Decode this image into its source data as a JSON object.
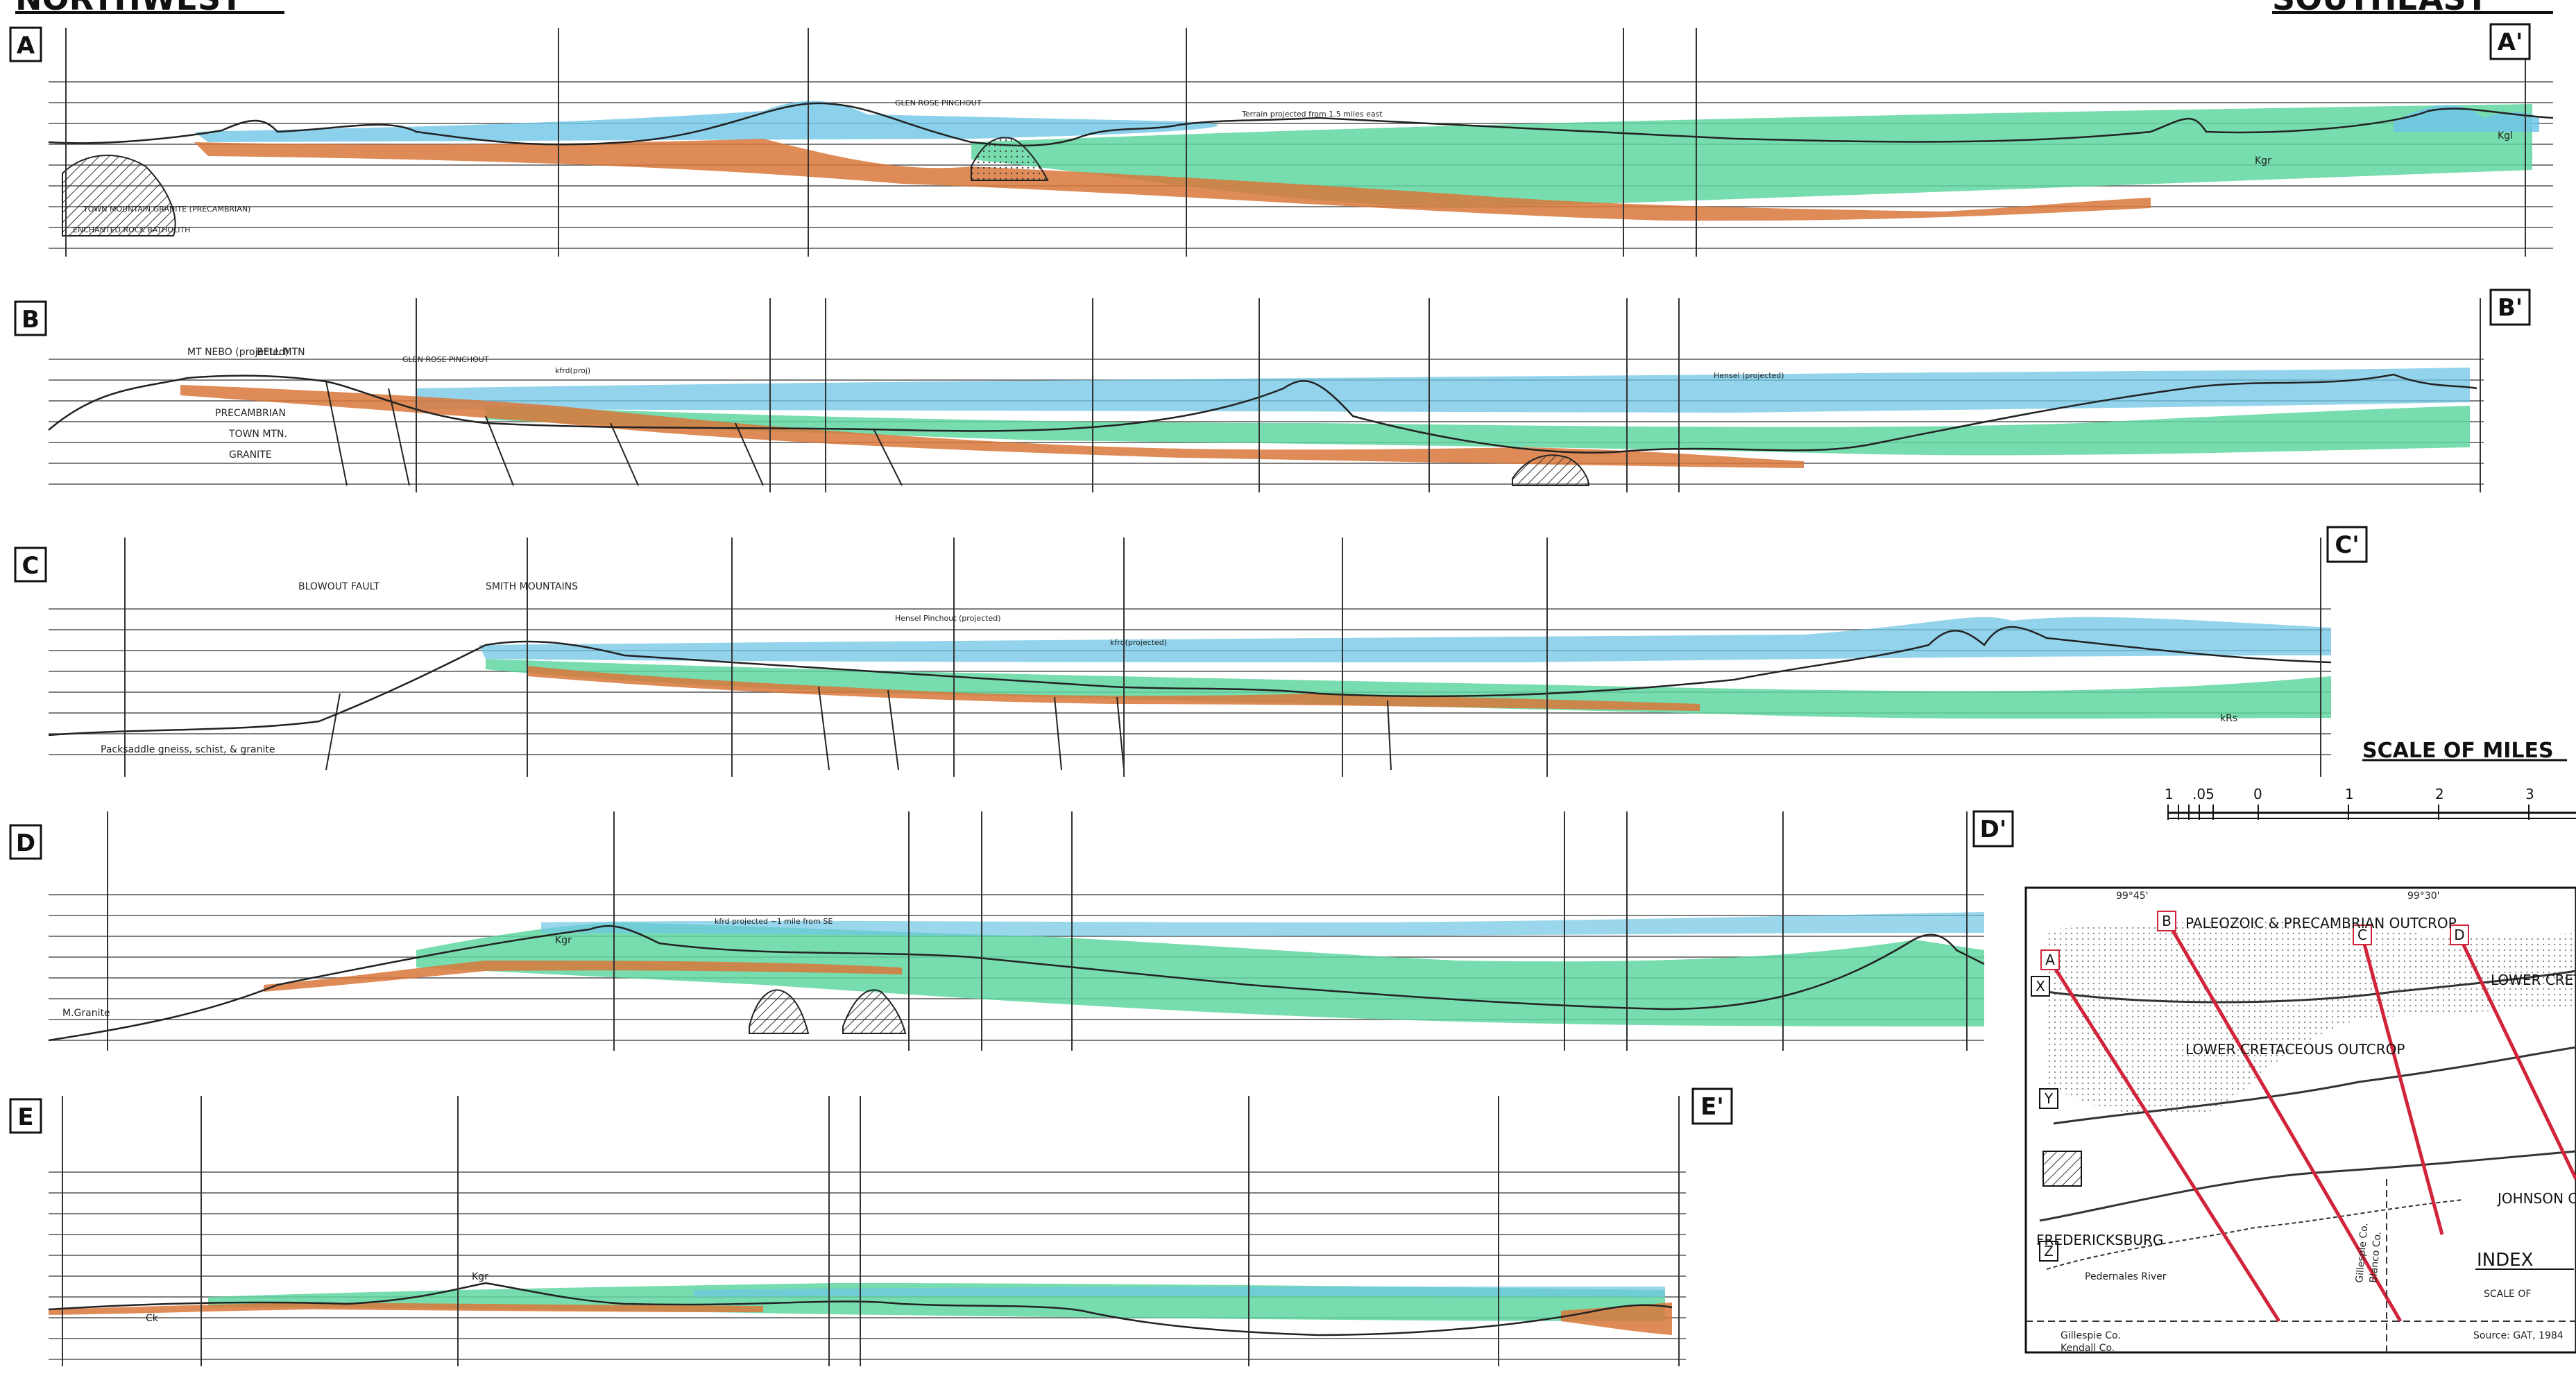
{
  "header": {
    "left": "NORTHWEST",
    "right": "SOUTHEAST"
  },
  "sections": [
    {
      "id": "A",
      "left_label": "A",
      "right_label": "A'"
    },
    {
      "id": "B",
      "left_label": "B",
      "right_label": "B'"
    },
    {
      "id": "C",
      "left_label": "C",
      "right_label": "C'"
    },
    {
      "id": "D",
      "left_label": "D",
      "right_label": "D'"
    },
    {
      "id": "E",
      "left_label": "E",
      "right_label": "E'"
    }
  ],
  "annotations": {
    "a_granite": "ENCHANTED ROCK BATHOLITH",
    "a_town_mtn": "TOWN MOUNTAIN GRANITE (PRECAMBRIAN)",
    "a_glen_rose": "GLEN ROSE PINCHOUT",
    "a_terrain": "Terrain projected from 1.5 miles east",
    "a_kgr": "Kgr",
    "a_kgl": "Kgl",
    "b_mt_nebo": "MT NEBO (projected)",
    "b_bell_mtn": "BELL MTN",
    "b_precambrian": "PRECAMBRIAN",
    "b_town_mtn": "TOWN MTN.",
    "b_granite": "GRANITE",
    "b_glen_rose_pinch": "GLEN ROSE PINCHOUT",
    "b_kfrd": "kfrd(proj)",
    "b_hensel": "Hensel (projected)",
    "c_blowout": "BLOWOUT FAULT",
    "c_smith_mtns": "SMITH MOUNTAINS",
    "c_packsaddle": "Packsaddle gneiss, schist, & granite",
    "c_hensel": "Hensel Pinchout (projected)",
    "c_kfrd": "kfrd(projected)",
    "c_krs": "kRs",
    "d_granite": "M.Granite",
    "d_kfrd": "kfrd projected ~1 mile from SE",
    "d_kgr": "Kgr",
    "e_kgr": "Kgr",
    "e_ck": "Ck",
    "scale_title": "SCALE OF MILES",
    "scale_ticks": [
      "1",
      ".05",
      "0",
      "1",
      "2",
      "3"
    ],
    "index": {
      "title": "INDEX",
      "outcrop_top": "PALEOZOIC & PRECAMBRIAN OUTCROP",
      "lower_cret_1": "LOWER CRETACEOUS OUTCROP",
      "lower_cret_2": "LOWER CRETACEOUS OUTCROP",
      "fredericksburg": "FREDERICKSBURG",
      "pedernales": "Pedernales River",
      "johnson": "JOHNSON CITY",
      "gillespie": "Gillespie Co.",
      "kendall": "Kendall Co.",
      "gillespie2": "Gillespie Co.",
      "blanco": "Blanco Co.",
      "scale_of": "SCALE OF",
      "source": "Source: GAT, 1984",
      "lon1": "99°45'",
      "lon2": "99°30'",
      "markers": [
        "A",
        "B",
        "C",
        "D",
        "X",
        "Y",
        "Z"
      ]
    }
  },
  "colors": {
    "green": "#5fd6a0",
    "blue": "#6fc6e6",
    "orange": "#d9773a",
    "line": "#333333"
  }
}
